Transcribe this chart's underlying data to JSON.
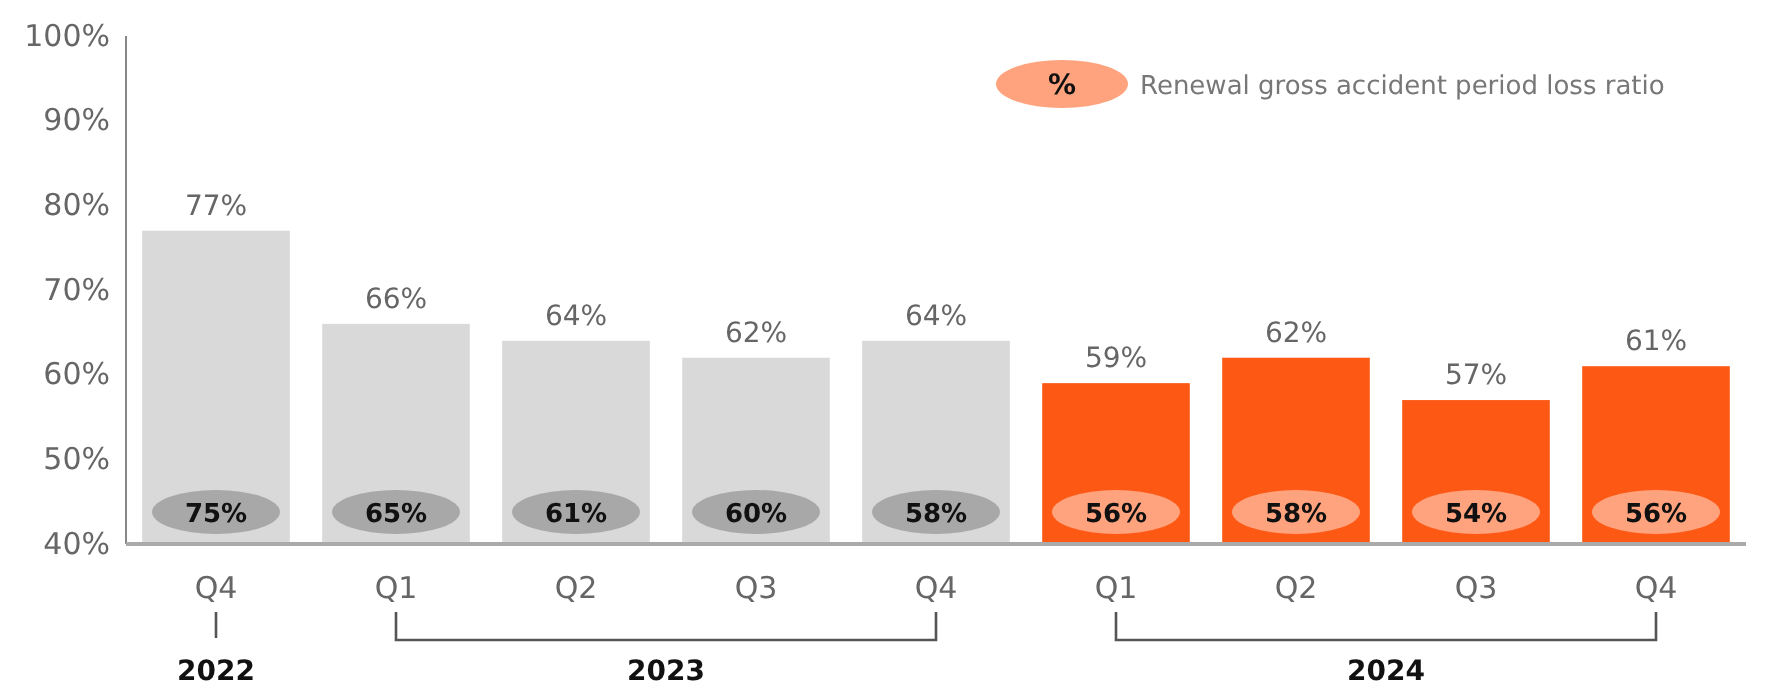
{
  "chart_data": {
    "type": "bar",
    "categories": [
      "Q4",
      "Q1",
      "Q2",
      "Q3",
      "Q4",
      "Q1",
      "Q2",
      "Q3",
      "Q4"
    ],
    "series": [
      {
        "colors": [
          "#d9d9d9",
          "#d9d9d9",
          "#d9d9d9",
          "#d9d9d9",
          "#d9d9d9",
          "#fe5815",
          "#fe5815",
          "#fe5815",
          "#fe5815"
        ],
        "values": [
          77,
          66,
          64,
          62,
          64,
          59,
          62,
          57,
          61
        ],
        "value_labels": [
          "77%",
          "66%",
          "64%",
          "62%",
          "64%",
          "59%",
          "62%",
          "57%",
          "61%"
        ]
      }
    ],
    "annotations": [
      "75%",
      "65%",
      "61%",
      "60%",
      "58%",
      "56%",
      "58%",
      "54%",
      "56%",
      "%",
      "Renewal gross accident period loss ratio",
      "2022",
      "2023",
      "2024"
    ],
    "ylim": [
      40,
      100
    ],
    "yticks": [
      {
        "value": 40,
        "label": "40%"
      },
      {
        "value": 50,
        "label": "50%"
      },
      {
        "value": 60,
        "label": "60%"
      },
      {
        "value": 70,
        "label": "70%"
      },
      {
        "value": 80,
        "label": "80%"
      },
      {
        "value": 90,
        "label": "90%"
      },
      {
        "value": 100,
        "label": "100%"
      }
    ]
  }
}
